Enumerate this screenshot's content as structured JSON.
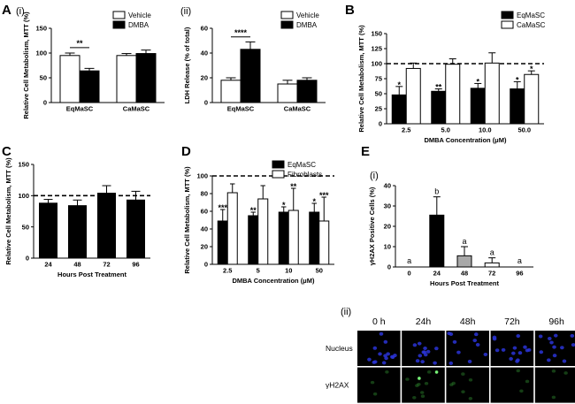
{
  "panels": {
    "A": "A",
    "A_i": "(i)",
    "A_ii": "(ii)",
    "B": "B",
    "C": "C",
    "D": "D",
    "E": "E",
    "E_i": "(i)",
    "E_ii": "(ii)"
  },
  "chart_data": [
    {
      "id": "Ai",
      "type": "bar",
      "ylabel": "Relative Cell Metabolism, MTT (%)",
      "ylim": [
        0,
        150
      ],
      "yticks": [
        0,
        50,
        100,
        150
      ],
      "categories": [
        "EqMaSC",
        "CaMaSC"
      ],
      "series": [
        {
          "name": "Vehicle",
          "color": "#ffffff",
          "values": [
            95,
            95
          ],
          "errors": [
            5,
            4
          ]
        },
        {
          "name": "DMBA",
          "color": "#000000",
          "values": [
            64,
            99
          ],
          "errors": [
            5,
            7
          ]
        }
      ],
      "sig": [
        {
          "text": "**",
          "from": [
            0,
            0
          ],
          "to": [
            0,
            1
          ],
          "y": 111
        }
      ],
      "legend": "top-right"
    },
    {
      "id": "Aii",
      "type": "bar",
      "ylabel": "LDH Release (% of total)",
      "ylim": [
        0,
        60
      ],
      "yticks": [
        0,
        20,
        40,
        60
      ],
      "categories": [
        "EqMaSC",
        "CaMaSC"
      ],
      "series": [
        {
          "name": "Vehicle",
          "color": "#ffffff",
          "values": [
            18,
            15
          ],
          "errors": [
            2,
            3
          ]
        },
        {
          "name": "DMBA",
          "color": "#000000",
          "values": [
            43,
            18
          ],
          "errors": [
            6,
            2
          ]
        }
      ],
      "sig": [
        {
          "text": "****",
          "from": [
            0,
            0
          ],
          "to": [
            0,
            1
          ],
          "y": 53
        }
      ],
      "legend": "top-right"
    },
    {
      "id": "B",
      "type": "bar",
      "ylabel": "Relative Cell Metabolism, MTT (%)",
      "xlabel": "DMBA Concentration (μM)",
      "ylim": [
        0,
        150
      ],
      "yticks": [
        0,
        25,
        50,
        75,
        100,
        125,
        150
      ],
      "categories": [
        "2.5",
        "5.0",
        "10.0",
        "50.0"
      ],
      "reference_line": 100,
      "series": [
        {
          "name": "EqMaSC",
          "color": "#000000",
          "values": [
            48,
            54,
            59,
            58
          ],
          "errors": [
            14,
            4,
            8,
            12
          ],
          "stars": [
            "*",
            "**",
            "*",
            "*"
          ]
        },
        {
          "name": "CaMaSC",
          "color": "#ffffff",
          "values": [
            92,
            99,
            101,
            82
          ],
          "errors": [
            9,
            9,
            17,
            6
          ],
          "stars": [
            "",
            "",
            "",
            "*"
          ]
        }
      ],
      "legend": "top-right"
    },
    {
      "id": "C",
      "type": "bar",
      "ylabel": "Relative Cell Metabolism, MTT (%)",
      "xlabel": "Hours Post Treatment",
      "ylim": [
        0,
        150
      ],
      "yticks": [
        0,
        50,
        100,
        150
      ],
      "categories": [
        "24",
        "48",
        "72",
        "96"
      ],
      "reference_line": 100,
      "series": [
        {
          "name": "",
          "color": "#000000",
          "values": [
            88,
            84,
            104,
            93
          ],
          "errors": [
            6,
            9,
            12,
            14
          ]
        }
      ]
    },
    {
      "id": "D",
      "type": "bar",
      "ylabel": "Relative Cell Metabolism, MTT (%)",
      "xlabel": "DMBA Concentration (μM)",
      "ylim": [
        0,
        100
      ],
      "yticks": [
        0,
        20,
        40,
        60,
        80,
        100
      ],
      "categories": [
        "2.5",
        "5",
        "10",
        "50"
      ],
      "reference_line": 100,
      "series": [
        {
          "name": "EqMaSC",
          "color": "#000000",
          "values": [
            49,
            55,
            59,
            59
          ],
          "errors": [
            13,
            4,
            6,
            10
          ],
          "stars": [
            "***",
            "**",
            "*",
            "*"
          ]
        },
        {
          "name": "Fibroblasts",
          "color": "#ffffff",
          "values": [
            81,
            74,
            61,
            49
          ],
          "errors": [
            10,
            15,
            25,
            27
          ],
          "stars": [
            "",
            "",
            "**",
            "***"
          ]
        }
      ],
      "legend": "top-right"
    },
    {
      "id": "E",
      "type": "bar",
      "ylabel": "γH2AX Positive Cells (%)",
      "xlabel": "Hours Post Treatment",
      "ylim": [
        0,
        40
      ],
      "yticks": [
        0,
        10,
        20,
        30,
        40
      ],
      "categories": [
        "0",
        "24",
        "48",
        "72",
        "96"
      ],
      "series": [
        {
          "name": "",
          "colors": [
            "#000000",
            "#000000",
            "#a8a8a8",
            "#ffffff",
            "#000000"
          ],
          "values": [
            0,
            25.5,
            5.5,
            2,
            0
          ],
          "errors": [
            0,
            9,
            4.5,
            2.5,
            0
          ],
          "letters": [
            "a",
            "b",
            "a",
            "a",
            "a"
          ]
        }
      ]
    }
  ],
  "micrographs": {
    "columns": [
      "0 h",
      "24h",
      "48h",
      "72h",
      "96h"
    ],
    "rows": [
      "Nucleus",
      "γH2AX"
    ],
    "nucleus_color": "#2a34d6",
    "h2ax_color": "#2f8a2f"
  }
}
